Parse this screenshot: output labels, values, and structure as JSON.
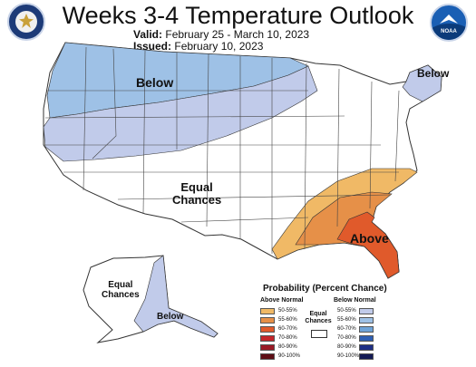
{
  "title": "Weeks 3-4 Temperature Outlook",
  "valid_label": "Valid:",
  "valid_dates": "February 25 - March 10, 2023",
  "issued_label": "Issued:",
  "issued_date": "February 10, 2023",
  "logos": {
    "left": "commerce-seal",
    "right": "noaa-logo",
    "noaa_text": "NOAA"
  },
  "map_labels": {
    "below_northwest": "Below",
    "below_northeast": "Below",
    "equal_chances_conus": [
      "Equal",
      "Chances"
    ],
    "above_southeast": "Above",
    "equal_chances_alaska": [
      "Equal",
      "Chances"
    ],
    "below_alaska": "Below"
  },
  "legend": {
    "title": "Probability (Percent Chance)",
    "above_header": "Above Normal",
    "below_header": "Below Normal",
    "equal_label": [
      "Equal",
      "Chances"
    ],
    "categories": [
      "50-55%",
      "55-60%",
      "60-70%",
      "70-80%",
      "80-90%",
      "90-100%"
    ],
    "above_colors": [
      "#f0b966",
      "#e69048",
      "#e05a2b",
      "#c4262a",
      "#9a1a25",
      "#5e0f16"
    ],
    "below_colors": [
      "#c1cbea",
      "#9ec1e6",
      "#6ea3d8",
      "#2e5fb4",
      "#1e2f86",
      "#131a55"
    ]
  },
  "region_colors": {
    "below_50_55": "#c1cbea",
    "below_55_60": "#9ec1e6",
    "above_50_55": "#f0b966",
    "above_55_60": "#e69048",
    "above_60_70": "#e05a2b"
  }
}
